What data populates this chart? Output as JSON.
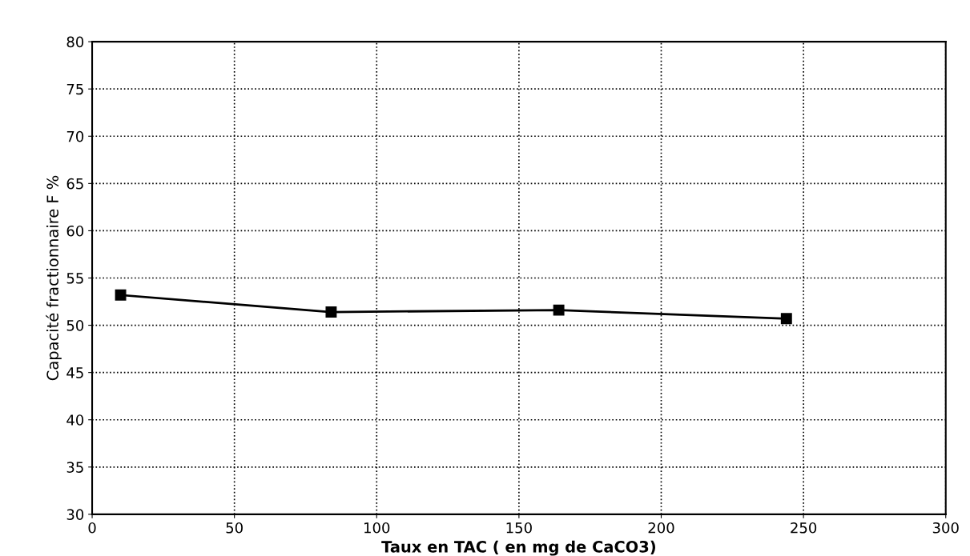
{
  "chart_data": {
    "type": "line",
    "xlabel": "Taux en TAC ( en mg de CaCO3)",
    "ylabel": "Capacité fractionnaire F %",
    "x": [
      10,
      84,
      164,
      244
    ],
    "series": [
      {
        "color": "#000000",
        "values": [
          53.2,
          51.4,
          51.6,
          50.7
        ]
      }
    ],
    "xlim": [
      0,
      300
    ],
    "xticks": [
      0,
      50,
      100,
      150,
      200,
      250,
      300
    ],
    "ylim": [
      30,
      80
    ],
    "yticks": [
      30,
      35,
      40,
      45,
      50,
      55,
      60,
      65,
      70,
      75,
      80
    ],
    "grid": true,
    "marker": "square",
    "line_style": "solid"
  }
}
